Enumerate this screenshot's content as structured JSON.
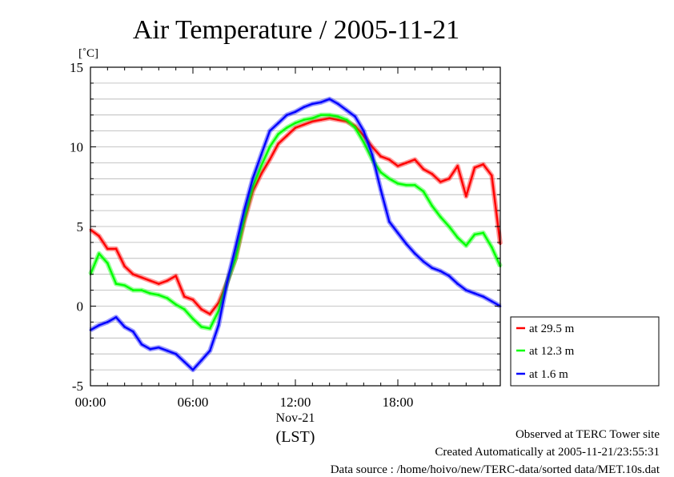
{
  "chart_data": {
    "type": "line",
    "title": "Air Temperature / 2005-11-21",
    "ylabel": "[˚C]",
    "xlabel": "(LST)",
    "x_date_label": "Nov-21",
    "ylim": [
      -5,
      15
    ],
    "y_ticks": [
      "15",
      "10",
      "5",
      "0",
      "-5"
    ],
    "xlim": [
      "00:00",
      "24:00"
    ],
    "x_ticks": [
      "00:00",
      "06:00",
      "12:00",
      "18:00"
    ],
    "grid": "horizontal, every 1 ˚C",
    "legend_position": "right, below plot top",
    "x_hours": [
      0,
      0.5,
      1,
      1.5,
      2,
      2.5,
      3,
      3.5,
      4,
      4.5,
      5,
      5.5,
      6,
      6.5,
      7,
      7.5,
      8,
      8.5,
      9,
      9.5,
      10,
      10.5,
      11,
      11.5,
      12,
      12.5,
      13,
      13.5,
      14,
      14.5,
      15,
      15.5,
      16,
      16.5,
      17,
      17.5,
      18,
      18.5,
      19,
      19.5,
      20,
      20.5,
      21,
      21.5,
      22,
      22.5,
      23,
      23.5,
      24
    ],
    "series": [
      {
        "name": "at 29.5 m",
        "color": "#ff0000",
        "values": [
          4.8,
          4.4,
          3.6,
          3.6,
          2.5,
          2.0,
          1.8,
          1.6,
          1.4,
          1.6,
          1.9,
          0.6,
          0.4,
          -0.2,
          -0.5,
          0.2,
          1.5,
          3.0,
          5.3,
          7.2,
          8.3,
          9.2,
          10.2,
          10.7,
          11.2,
          11.4,
          11.6,
          11.7,
          11.8,
          11.7,
          11.6,
          11.3,
          10.7,
          10.0,
          9.4,
          9.2,
          8.8,
          9.0,
          9.2,
          8.6,
          8.3,
          7.8,
          8.0,
          8.8,
          6.9,
          8.7,
          8.9,
          8.2,
          3.9
        ]
      },
      {
        "name": "at 12.3 m",
        "color": "#00ff00",
        "values": [
          2.0,
          3.3,
          2.7,
          1.4,
          1.3,
          1.0,
          1.0,
          0.8,
          0.7,
          0.5,
          0.1,
          -0.2,
          -0.8,
          -1.3,
          -1.4,
          -0.3,
          1.5,
          3.0,
          5.5,
          7.5,
          8.8,
          10.0,
          10.8,
          11.2,
          11.5,
          11.7,
          11.8,
          12.0,
          12.0,
          11.9,
          11.7,
          11.2,
          10.3,
          9.2,
          8.4,
          8.0,
          7.7,
          7.6,
          7.6,
          7.2,
          6.3,
          5.6,
          5.0,
          4.3,
          3.8,
          4.5,
          4.6,
          3.7,
          2.5
        ]
      },
      {
        "name": "at 1.6 m",
        "color": "#0000ff",
        "values": [
          -1.5,
          -1.2,
          -1.0,
          -0.7,
          -1.3,
          -1.6,
          -2.4,
          -2.7,
          -2.6,
          -2.8,
          -3.0,
          -3.5,
          -4.0,
          -3.4,
          -2.8,
          -1.2,
          1.5,
          3.7,
          6.0,
          8.0,
          9.5,
          11.0,
          11.5,
          12.0,
          12.2,
          12.5,
          12.7,
          12.8,
          13.0,
          12.7,
          12.3,
          11.9,
          11.0,
          9.5,
          7.3,
          5.3,
          4.6,
          3.9,
          3.3,
          2.8,
          2.4,
          2.2,
          1.9,
          1.4,
          1.0,
          0.8,
          0.6,
          0.3,
          0.0
        ]
      }
    ]
  },
  "footer": {
    "line1": "Observed at TERC Tower site",
    "line2": "Created Automatically at 2005-11-21/23:55:31",
    "line3": "Data source : /home/hoivo/new/TERC-data/sorted  data/MET.10s.dat"
  }
}
